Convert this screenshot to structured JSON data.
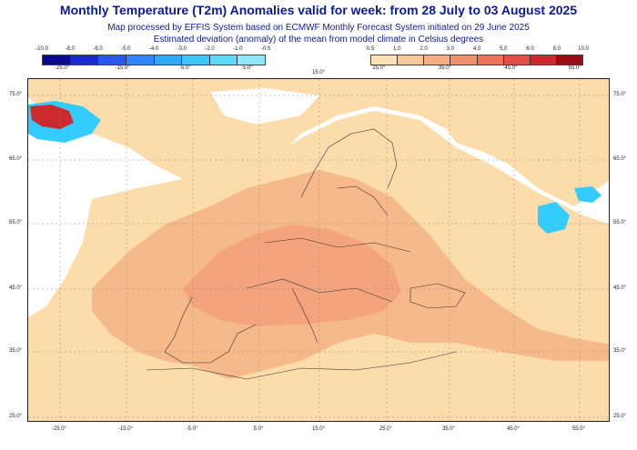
{
  "title": "Monthly Temperature (T2m) Anomalies valid for week: from 28 July to 03 August 2025",
  "subtitle1": "Map processed by EFFIS System based on ECMWF Monthly Forecast System initiated on 29 June 2025",
  "subtitle2": "Estimated deviation (anomaly) of the mean from model climate in Celsius degrees",
  "legend_cold": {
    "labels": [
      "-10.0",
      "-8.0",
      "-6.0",
      "-5.0",
      "-4.0",
      "-3.0",
      "-2.0",
      "-1.0",
      "-0.5"
    ],
    "colors": [
      "#0b0b8f",
      "#1a2ad0",
      "#2b57f0",
      "#2f86ff",
      "#33a8ff",
      "#40c4ff",
      "#5fd8ff",
      "#8fe8ff"
    ]
  },
  "legend_warm": {
    "labels": [
      "0.5",
      "1.0",
      "2.0",
      "3.0",
      "4.0",
      "5.0",
      "6.0",
      "8.0",
      "10.0"
    ],
    "colors": [
      "#fde2b5",
      "#f9c89a",
      "#f5ad82",
      "#f0906c",
      "#ec735a",
      "#e05046",
      "#cc2a2f",
      "#990d14"
    ]
  },
  "legend_bottom_left": [
    "-25.0°",
    "-15.0°",
    "-5.0°",
    "5.0°"
  ],
  "legend_bottom_mid": "15.0°",
  "legend_bottom_right": [
    "25.0°",
    "35.0°",
    "45.0°",
    "55.0°"
  ],
  "lat_labels": [
    "75.0°",
    "65.0°",
    "55.0°",
    "45.0°",
    "35.0°",
    "25.0°"
  ],
  "lon_labels": [
    "-25.0°",
    "-15.0°",
    "-5.0°",
    "5.0°",
    "15.0°",
    "25.0°",
    "35.0°",
    "45.0°",
    "55.0°"
  ],
  "map_colors": {
    "ocean": "#ffffff",
    "light_warm": "#fddcab",
    "mid_warm": "#f6b98a",
    "strong_warm": "#f3a47c",
    "cold": "#33ccff",
    "hot_core": "#cc2a2f",
    "border": "#333333"
  }
}
